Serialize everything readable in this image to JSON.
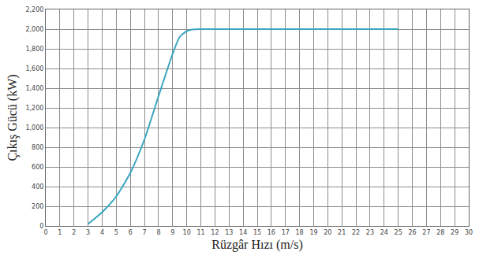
{
  "chart_data": {
    "type": "line",
    "x_label": "Rüzgâr Hızı (m/s)",
    "y_label": "Çıkış Gücü (kW)",
    "x": [
      3,
      4,
      5,
      6,
      7,
      8,
      9,
      9.5,
      10,
      10.5,
      11,
      12,
      13,
      14,
      15,
      16,
      17,
      18,
      19,
      20,
      21,
      22,
      23,
      24,
      25
    ],
    "values": [
      20,
      140,
      300,
      540,
      880,
      1320,
      1750,
      1920,
      1980,
      1998,
      2000,
      2000,
      2000,
      2000,
      2000,
      2000,
      2000,
      2000,
      2000,
      2000,
      2000,
      2000,
      2000,
      2000,
      2000
    ],
    "color": "#3aa5bf",
    "xlim": [
      0,
      30
    ],
    "xticks": [
      0,
      1,
      2,
      3,
      4,
      5,
      6,
      7,
      8,
      9,
      10,
      11,
      12,
      13,
      14,
      15,
      16,
      17,
      18,
      19,
      20,
      21,
      22,
      23,
      24,
      25,
      26,
      27,
      28,
      29,
      30
    ],
    "ylim": [
      0,
      2200
    ],
    "yticks": [
      0,
      200,
      400,
      600,
      800,
      {
        "value": 1000,
        "label": "1,000"
      },
      {
        "value": 1200,
        "label": "1,200"
      },
      {
        "value": 1400,
        "label": "1,400"
      },
      {
        "value": 1600,
        "label": "1,600"
      },
      {
        "value": 1800,
        "label": "1,800"
      },
      {
        "value": 2000,
        "label": "2,000"
      },
      {
        "value": 2200,
        "label": "2,200"
      }
    ],
    "grid": true
  }
}
